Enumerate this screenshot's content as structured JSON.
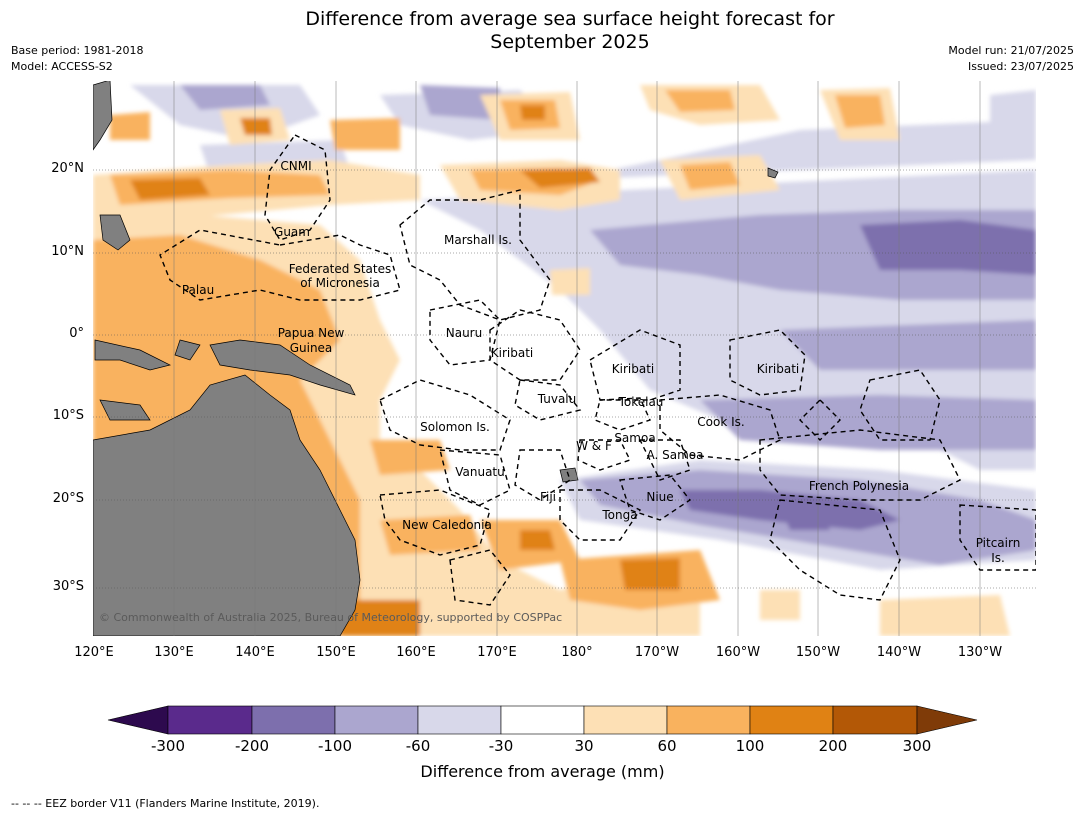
{
  "title_line1": "Difference from average sea surface height forecast for",
  "title_line2": "September 2025",
  "base_period": "Base period: 1981-2018",
  "model": "Model: ACCESS-S2",
  "model_run": "Model run: 21/07/2025",
  "issued": "Issued: 23/07/2025",
  "copyright": "© Commonwealth of Australia 2025, Bureau of Meteorology, supported by COSPPac",
  "lat_labels": [
    "20°N",
    "10°N",
    "0°",
    "10°S",
    "20°S",
    "30°S"
  ],
  "lon_labels": [
    "120°E",
    "130°E",
    "140°E",
    "150°E",
    "160°E",
    "170°E",
    "180°",
    "170°W",
    "160°W",
    "150°W",
    "140°W",
    "130°W"
  ],
  "places": [
    "CNMI",
    "Guam",
    "Marshall Is.",
    "Federated States",
    "of Micronesia",
    "Palau",
    "Papua New",
    "Guinea",
    "Nauru",
    "Kiribati",
    "Kiribati",
    "Kiribati",
    "Tuvalu",
    "Tokelau",
    "Solomon Is.",
    "Cook Is.",
    "Samoa",
    "W & F",
    "A. Samoa",
    "Vanuatu",
    "Fiji",
    "Niue",
    "French Polynesia",
    "Tonga",
    "New Caledonia",
    "Pitcairn",
    "Is."
  ],
  "colorbar": {
    "title": "Difference from average (mm)",
    "ticks": [
      "-300",
      "-200",
      "-100",
      "-60",
      "-30",
      "30",
      "60",
      "100",
      "200",
      "300"
    ],
    "colors": [
      "#2d0a4e",
      "#5a2a8c",
      "#7d6fad",
      "#aba6cf",
      "#d8d8ea",
      "#ffffff",
      "#fde0b5",
      "#f9b25e",
      "#e08214",
      "#b35806",
      "#7f3b08"
    ]
  },
  "footnote": "--  --  -- EEZ border V11 (Flanders Marine Institute, 2019)."
}
